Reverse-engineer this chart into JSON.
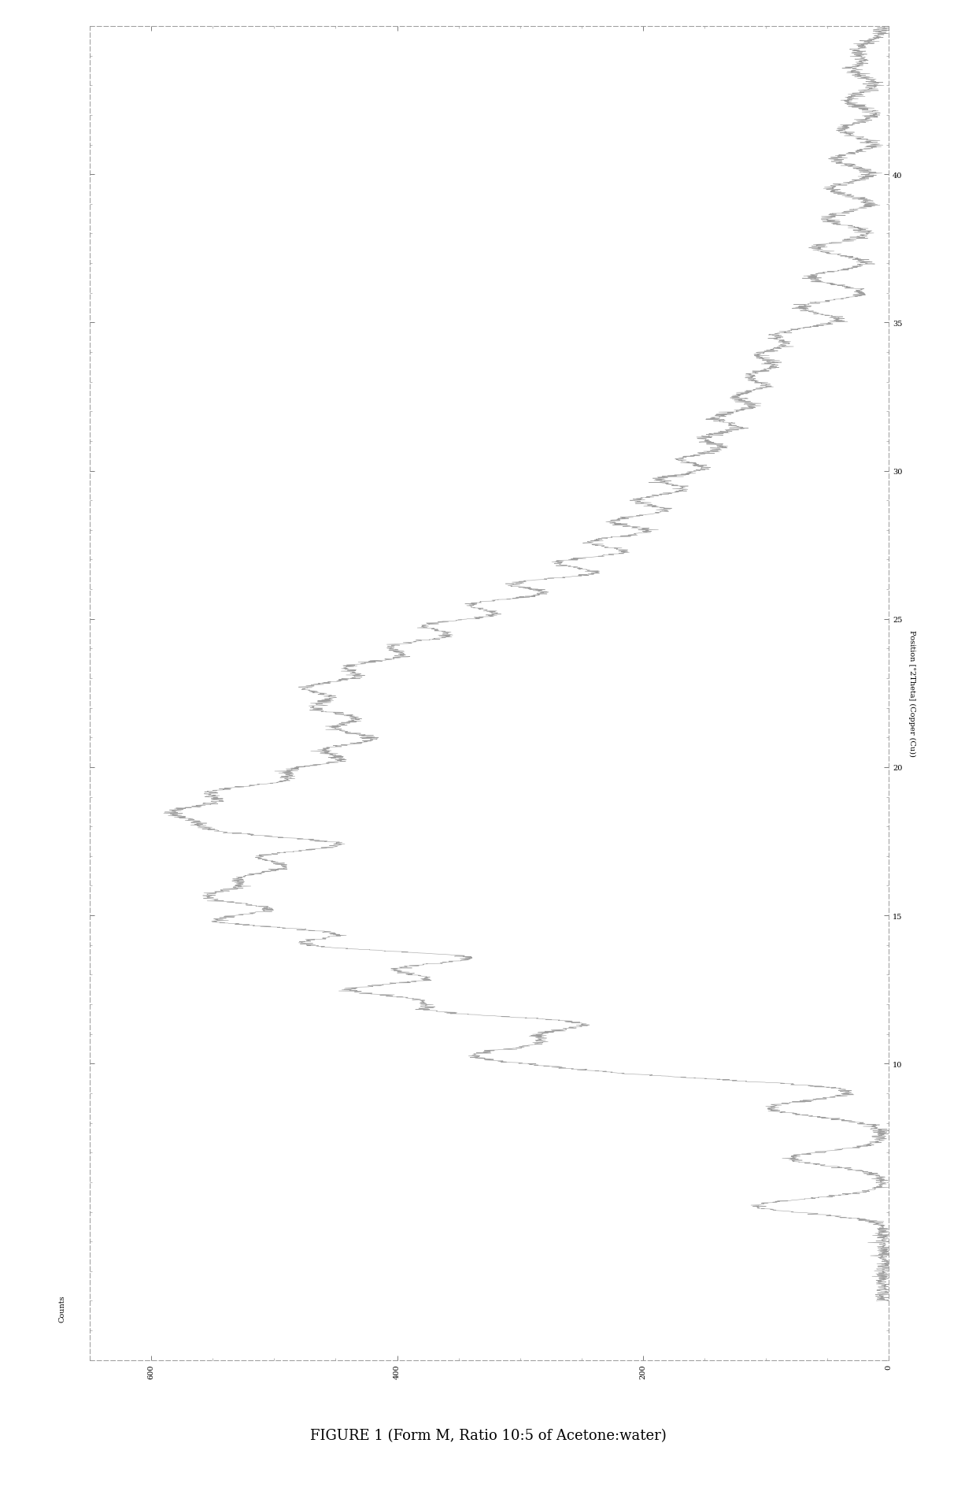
{
  "title": "FIGURE 1 (Form M, Ratio 10:5 of Acetone:water)",
  "ylabel": "Position [°2Theta] (Copper (Cu))",
  "counts_label": "Counts",
  "y_min": 0,
  "y_max": 45,
  "x_min": 0,
  "x_max": 650,
  "yticks": [
    10,
    15,
    20,
    25,
    30,
    35,
    40
  ],
  "xticks": [
    600,
    400,
    200,
    0
  ],
  "xtick_labels": [
    "600",
    "400",
    "200",
    "0"
  ],
  "background_color": "#ffffff",
  "line_color": "#777777",
  "spine_color": "#999999",
  "title_fontsize": 13,
  "axis_label_fontsize": 7,
  "tick_fontsize": 7,
  "seed": 12345,
  "peak_positions": [
    5.2,
    6.8,
    8.5,
    9.7,
    10.3,
    11.0,
    11.8,
    12.5,
    13.2,
    14.0,
    14.8,
    15.6,
    16.3,
    17.0,
    17.8,
    18.5,
    19.2,
    19.9,
    20.6,
    21.3,
    22.0,
    22.7,
    23.4,
    24.1,
    24.8,
    25.5,
    26.2,
    26.9,
    27.6,
    28.3,
    29.0,
    29.7,
    30.4,
    31.1,
    31.8,
    32.5,
    33.2,
    33.9,
    34.6,
    35.5,
    36.5,
    37.5,
    38.5,
    39.5,
    40.5,
    41.5,
    42.5,
    43.5,
    44.2
  ],
  "peak_heights": [
    120,
    90,
    110,
    200,
    350,
    280,
    400,
    450,
    420,
    500,
    580,
    560,
    490,
    510,
    530,
    560,
    520,
    480,
    450,
    440,
    460,
    470,
    430,
    410,
    380,
    360,
    320,
    290,
    260,
    240,
    220,
    200,
    180,
    160,
    150,
    130,
    120,
    110,
    100,
    80,
    70,
    65,
    55,
    50,
    45,
    40,
    35,
    30,
    25
  ],
  "peak_widths": [
    0.25,
    0.25,
    0.28,
    0.3,
    0.32,
    0.3,
    0.32,
    0.3,
    0.3,
    0.32,
    0.35,
    0.35,
    0.33,
    0.33,
    0.35,
    0.35,
    0.33,
    0.33,
    0.32,
    0.32,
    0.33,
    0.33,
    0.32,
    0.32,
    0.3,
    0.3,
    0.28,
    0.28,
    0.28,
    0.28,
    0.28,
    0.28,
    0.28,
    0.28,
    0.28,
    0.28,
    0.28,
    0.28,
    0.28,
    0.25,
    0.25,
    0.25,
    0.25,
    0.25,
    0.25,
    0.25,
    0.25,
    0.25,
    0.25
  ]
}
